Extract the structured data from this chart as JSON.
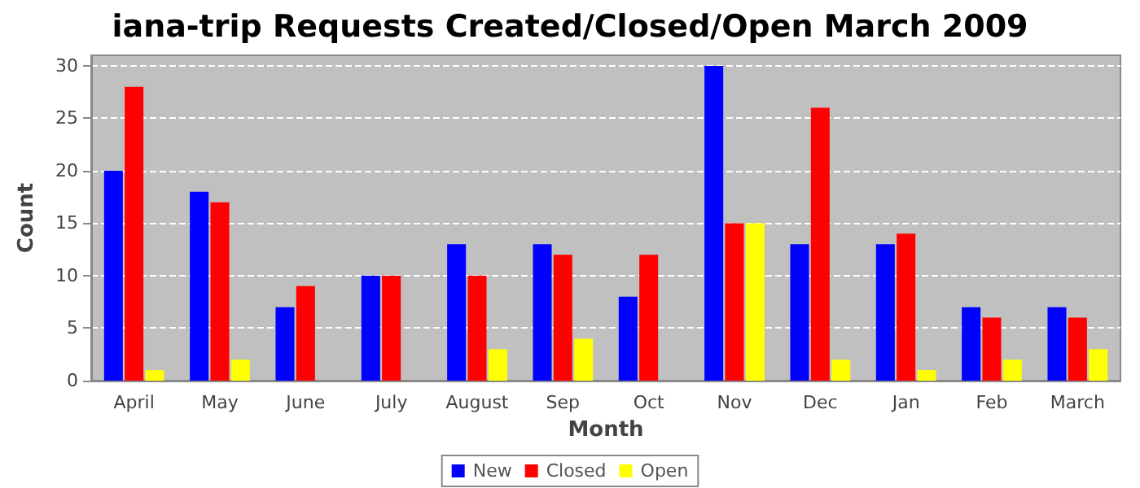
{
  "chart_data": {
    "type": "bar",
    "title": "iana-trip Requests Created/Closed/Open March 2009",
    "xlabel": "Month",
    "ylabel": "Count",
    "categories": [
      "April",
      "May",
      "June",
      "July",
      "August",
      "Sep",
      "Oct",
      "Nov",
      "Dec",
      "Jan",
      "Feb",
      "March"
    ],
    "series": [
      {
        "name": "New",
        "color": "#0000ff",
        "values": [
          20,
          18,
          7,
          10,
          13,
          13,
          8,
          30,
          13,
          13,
          7,
          7
        ]
      },
      {
        "name": "Closed",
        "color": "#ff0000",
        "values": [
          28,
          17,
          9,
          10,
          10,
          12,
          12,
          15,
          26,
          14,
          6,
          6
        ]
      },
      {
        "name": "Open",
        "color": "#ffff00",
        "values": [
          1,
          2,
          0,
          0,
          3,
          4,
          0,
          15,
          2,
          1,
          2,
          3
        ]
      }
    ],
    "ylim": [
      0,
      31
    ],
    "yticks": [
      0,
      5,
      10,
      15,
      20,
      25,
      30
    ],
    "grid": "y",
    "legend": "bottom"
  }
}
